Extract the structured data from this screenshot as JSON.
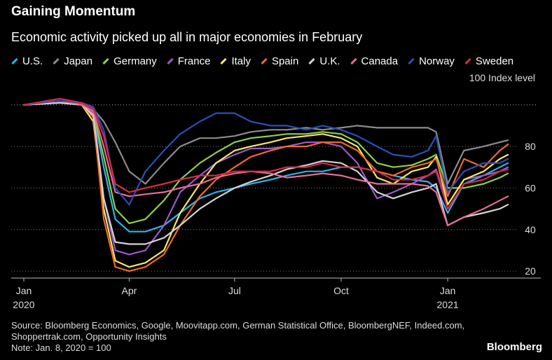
{
  "header": {
    "title": "Gaining Momentum",
    "subtitle": "Economic activity picked up all in major economies in February",
    "unit_label": "100 Index level"
  },
  "footer": {
    "source": "Source: Bloomberg Economics, Google, Moovitapp.com, German Statistical Office, BloombergNEF, Indeed.com, Shoppertrak.com, Opportunity Insights",
    "note": "Note: Jan. 8, 2020 = 100",
    "brand": "Bloomberg"
  },
  "chart_data": {
    "type": "line",
    "title": "Gaining Momentum",
    "subtitle": "Economic activity picked up all in major economies in February",
    "ylabel": "100 Index level",
    "ylim": [
      17,
      108
    ],
    "xlim": [
      "2020-01-01",
      "2021-02-28"
    ],
    "y_ticks": [
      20,
      40,
      60,
      80
    ],
    "x_ticks": [
      {
        "date": "2020-01-01",
        "label": "Jan",
        "sublabel": "2020"
      },
      {
        "date": "2020-04-01",
        "label": "Apr",
        "sublabel": ""
      },
      {
        "date": "2020-07-01",
        "label": "Jul",
        "sublabel": ""
      },
      {
        "date": "2020-10-01",
        "label": "Oct",
        "sublabel": ""
      },
      {
        "date": "2021-01-01",
        "label": "Jan",
        "sublabel": "2021"
      }
    ],
    "reference_line": 100,
    "dates": [
      "2020-01-01",
      "2020-02-01",
      "2020-02-20",
      "2020-03-01",
      "2020-03-10",
      "2020-03-20",
      "2020-04-01",
      "2020-04-15",
      "2020-05-01",
      "2020-05-15",
      "2020-06-01",
      "2020-06-15",
      "2020-07-01",
      "2020-07-15",
      "2020-08-01",
      "2020-08-15",
      "2020-09-01",
      "2020-09-15",
      "2020-10-01",
      "2020-10-15",
      "2020-11-01",
      "2020-11-15",
      "2020-12-01",
      "2020-12-15",
      "2020-12-22",
      "2021-01-01",
      "2021-01-15",
      "2021-02-01",
      "2021-02-15",
      "2021-02-22"
    ],
    "series": [
      {
        "name": "U.S.",
        "color": "#2fb3e8",
        "values": [
          100,
          101,
          100,
          96,
          70,
          45,
          39,
          39,
          42,
          48,
          55,
          58,
          60,
          62,
          64,
          66,
          68,
          68,
          70,
          70,
          68,
          66,
          64,
          63,
          60,
          48,
          62,
          66,
          70,
          72
        ]
      },
      {
        "name": "Japan",
        "color": "#8c8c8c",
        "values": [
          100,
          102,
          101,
          98,
          92,
          82,
          68,
          62,
          72,
          80,
          84,
          84,
          85,
          87,
          88,
          88,
          89,
          88,
          89,
          90,
          89,
          89,
          89,
          89,
          87,
          62,
          78,
          80,
          82,
          83
        ]
      },
      {
        "name": "Germany",
        "color": "#8fcf4a",
        "values": [
          100,
          102,
          100,
          96,
          75,
          50,
          43,
          45,
          54,
          64,
          72,
          77,
          82,
          84,
          85,
          86,
          86,
          87,
          86,
          82,
          72,
          70,
          71,
          74,
          76,
          60,
          60,
          62,
          65,
          67
        ]
      },
      {
        "name": "France",
        "color": "#9b59c9",
        "values": [
          100,
          101,
          100,
          96,
          55,
          30,
          28,
          30,
          42,
          58,
          66,
          72,
          76,
          79,
          79,
          80,
          82,
          82,
          80,
          72,
          55,
          58,
          62,
          66,
          69,
          52,
          64,
          66,
          68,
          70
        ]
      },
      {
        "name": "Italy",
        "color": "#f4e66b",
        "values": [
          100,
          101,
          100,
          92,
          50,
          25,
          22,
          24,
          30,
          48,
          62,
          72,
          78,
          80,
          82,
          84,
          85,
          86,
          84,
          80,
          65,
          62,
          68,
          70,
          75,
          52,
          64,
          68,
          74,
          76
        ]
      },
      {
        "name": "Spain",
        "color": "#ef6a2c",
        "values": [
          100,
          101,
          100,
          94,
          45,
          22,
          20,
          22,
          28,
          42,
          56,
          64,
          70,
          75,
          78,
          80,
          80,
          82,
          82,
          78,
          68,
          66,
          70,
          72,
          74,
          56,
          74,
          70,
          78,
          81
        ]
      },
      {
        "name": "U.K.",
        "color": "#d3d3d3",
        "values": [
          100,
          101,
          100,
          95,
          55,
          34,
          33,
          33,
          36,
          42,
          50,
          55,
          60,
          63,
          66,
          69,
          71,
          73,
          72,
          68,
          58,
          55,
          58,
          60,
          62,
          42,
          46,
          48,
          50,
          52
        ]
      },
      {
        "name": "Canada",
        "color": "#e96b97",
        "values": [
          100,
          102,
          100,
          97,
          80,
          58,
          56,
          57,
          58,
          60,
          62,
          65,
          67,
          68,
          67,
          65,
          66,
          67,
          66,
          64,
          62,
          62,
          62,
          61,
          58,
          42,
          46,
          50,
          54,
          56
        ]
      },
      {
        "name": "Norway",
        "color": "#2950b8",
        "values": [
          100,
          102,
          101,
          99,
          88,
          60,
          52,
          68,
          78,
          86,
          92,
          96,
          96,
          92,
          90,
          90,
          88,
          90,
          88,
          85,
          80,
          76,
          75,
          78,
          85,
          58,
          68,
          72,
          72,
          74
        ]
      },
      {
        "name": "Sweden",
        "color": "#d62b46",
        "values": [
          100,
          103,
          101,
          98,
          85,
          62,
          58,
          60,
          62,
          64,
          66,
          66,
          68,
          68,
          68,
          70,
          70,
          72,
          70,
          70,
          68,
          64,
          64,
          66,
          68,
          50,
          62,
          64,
          68,
          69
        ]
      }
    ]
  }
}
